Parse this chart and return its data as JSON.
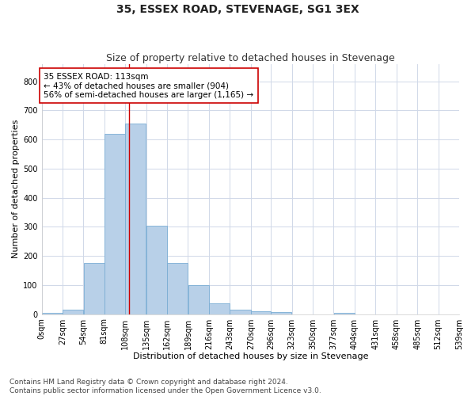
{
  "title": "35, ESSEX ROAD, STEVENAGE, SG1 3EX",
  "subtitle": "Size of property relative to detached houses in Stevenage",
  "xlabel": "Distribution of detached houses by size in Stevenage",
  "ylabel": "Number of detached properties",
  "bar_edges": [
    0,
    27,
    54,
    81,
    108,
    135,
    162,
    189,
    216,
    243,
    270,
    296,
    323,
    350,
    377,
    404,
    431,
    458,
    485,
    512,
    539
  ],
  "bar_heights": [
    5,
    15,
    175,
    620,
    655,
    305,
    175,
    100,
    38,
    15,
    10,
    8,
    0,
    0,
    5,
    0,
    0,
    0,
    0,
    0
  ],
  "bar_color": "#b8d0e8",
  "bar_edgecolor": "#7aadd4",
  "property_size": 113,
  "vline_color": "#cc0000",
  "annotation_text": "35 ESSEX ROAD: 113sqm\n← 43% of detached houses are smaller (904)\n56% of semi-detached houses are larger (1,165) →",
  "annotation_box_facecolor": "#ffffff",
  "annotation_box_edgecolor": "#cc0000",
  "ylim": [
    0,
    860
  ],
  "yticks": [
    0,
    100,
    200,
    300,
    400,
    500,
    600,
    700,
    800
  ],
  "footer_line1": "Contains HM Land Registry data © Crown copyright and database right 2024.",
  "footer_line2": "Contains public sector information licensed under the Open Government Licence v3.0.",
  "bg_color": "#ffffff",
  "plot_bg_color": "#ffffff",
  "grid_color": "#d0d8e8",
  "title_fontsize": 10,
  "subtitle_fontsize": 9,
  "xlabel_fontsize": 8,
  "ylabel_fontsize": 8,
  "tick_fontsize": 7,
  "annot_fontsize": 7.5,
  "footer_fontsize": 6.5
}
